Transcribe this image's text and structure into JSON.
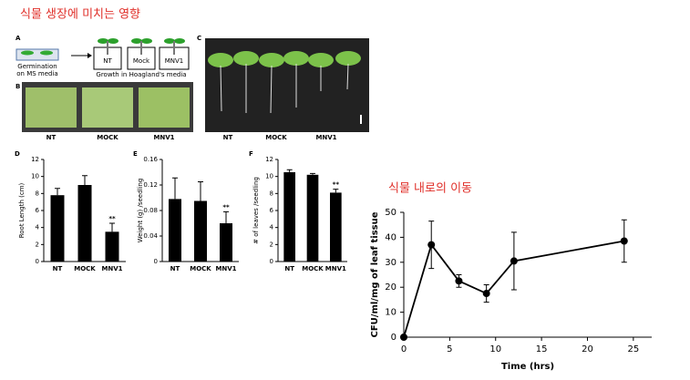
{
  "title": "식물 생장에 미치는 영향",
  "subtitle": "식물 내로의 이동",
  "panels": {
    "A": {
      "label": "A",
      "germination": [
        "Germination",
        "on MS media"
      ],
      "boxes": [
        "NT",
        "Mock",
        "MNV1"
      ],
      "growth": "Growth in Hoagland's media"
    },
    "B": {
      "label": "B",
      "photos": [
        "NT",
        "MOCK",
        "MNV1"
      ]
    },
    "C": {
      "label": "C",
      "groups": [
        "NT",
        "MOCK",
        "MNV1"
      ]
    }
  },
  "chart_data": [
    {
      "type": "bar",
      "panel": "D",
      "ylabel": "Root Length (cm)",
      "categories": [
        "NT",
        "MOCK",
        "MNV1"
      ],
      "values": [
        7.8,
        9.0,
        3.5
      ],
      "errors": [
        0.8,
        1.1,
        1.0
      ],
      "color": "#000000",
      "annotation": "**",
      "ylim": [
        0,
        12
      ],
      "yticks": [
        0,
        2,
        4,
        6,
        8,
        10,
        12
      ]
    },
    {
      "type": "bar",
      "panel": "E",
      "ylabel": "Weight (g) /seedling",
      "categories": [
        "NT",
        "MOCK",
        "MNV1"
      ],
      "values": [
        0.098,
        0.095,
        0.06
      ],
      "errors": [
        0.033,
        0.03,
        0.018
      ],
      "color": "#000000",
      "annotation": "**",
      "ylim": [
        0,
        0.16
      ],
      "yticks": [
        0,
        0.04,
        0.08,
        0.12,
        0.16
      ]
    },
    {
      "type": "bar",
      "panel": "F",
      "ylabel": "# of leaves /seedling",
      "categories": [
        "NT",
        "MOCK",
        "MNV1"
      ],
      "values": [
        10.5,
        10.2,
        8.1
      ],
      "errors": [
        0.3,
        0.15,
        0.4
      ],
      "color": "#000000",
      "annotation": "**",
      "ylim": [
        0,
        12
      ],
      "yticks": [
        0,
        2,
        4,
        6,
        8,
        10,
        12
      ]
    },
    {
      "type": "line",
      "xlabel": "Time (hrs)",
      "ylabel": "CFU/ml/mg of leaf tissue",
      "x": [
        0,
        3,
        6,
        9,
        12,
        24
      ],
      "values": [
        0,
        37,
        22.5,
        17.5,
        30.5,
        38.5
      ],
      "errors": [
        0,
        9.5,
        2.5,
        3.5,
        11.5,
        8.5
      ],
      "color": "#000000",
      "xlim": [
        0,
        27
      ],
      "xticks": [
        0,
        5,
        10,
        15,
        20,
        25
      ],
      "ylim": [
        0,
        50
      ],
      "yticks": [
        0,
        10,
        20,
        30,
        40,
        50
      ]
    }
  ]
}
